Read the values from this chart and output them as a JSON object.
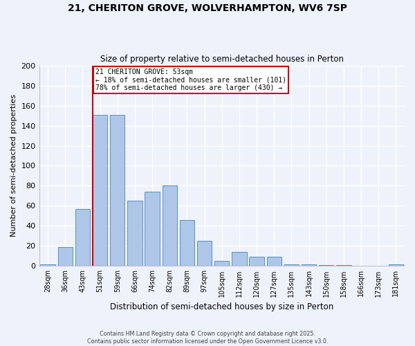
{
  "title1": "21, CHERITON GROVE, WOLVERHAMPTON, WV6 7SP",
  "title2": "Size of property relative to semi-detached houses in Perton",
  "xlabel": "Distribution of semi-detached houses by size in Perton",
  "ylabel": "Number of semi-detached properties",
  "categories": [
    "28sqm",
    "36sqm",
    "43sqm",
    "51sqm",
    "59sqm",
    "66sqm",
    "74sqm",
    "82sqm",
    "89sqm",
    "97sqm",
    "105sqm",
    "112sqm",
    "120sqm",
    "127sqm",
    "135sqm",
    "143sqm",
    "150sqm",
    "158sqm",
    "166sqm",
    "173sqm",
    "181sqm"
  ],
  "values": [
    2,
    19,
    57,
    151,
    151,
    65,
    74,
    80,
    46,
    25,
    5,
    14,
    9,
    9,
    2,
    2,
    1,
    1,
    0,
    0,
    2
  ],
  "bar_color": "#aec6e8",
  "bar_edge_color": "#5a8fc2",
  "background_color": "#eef2fb",
  "grid_color": "#ffffff",
  "property_label": "21 CHERITON GROVE: 53sqm",
  "smaller_pct": "18%",
  "smaller_count": 101,
  "larger_pct": "78%",
  "larger_count": 430,
  "red_line_color": "#cc0000",
  "annotation_box_color": "#cc0000",
  "ylim": [
    0,
    200
  ],
  "yticks": [
    0,
    20,
    40,
    60,
    80,
    100,
    120,
    140,
    160,
    180,
    200
  ],
  "footer1": "Contains HM Land Registry data © Crown copyright and database right 2025.",
  "footer2": "Contains public sector information licensed under the Open Government Licence v3.0."
}
